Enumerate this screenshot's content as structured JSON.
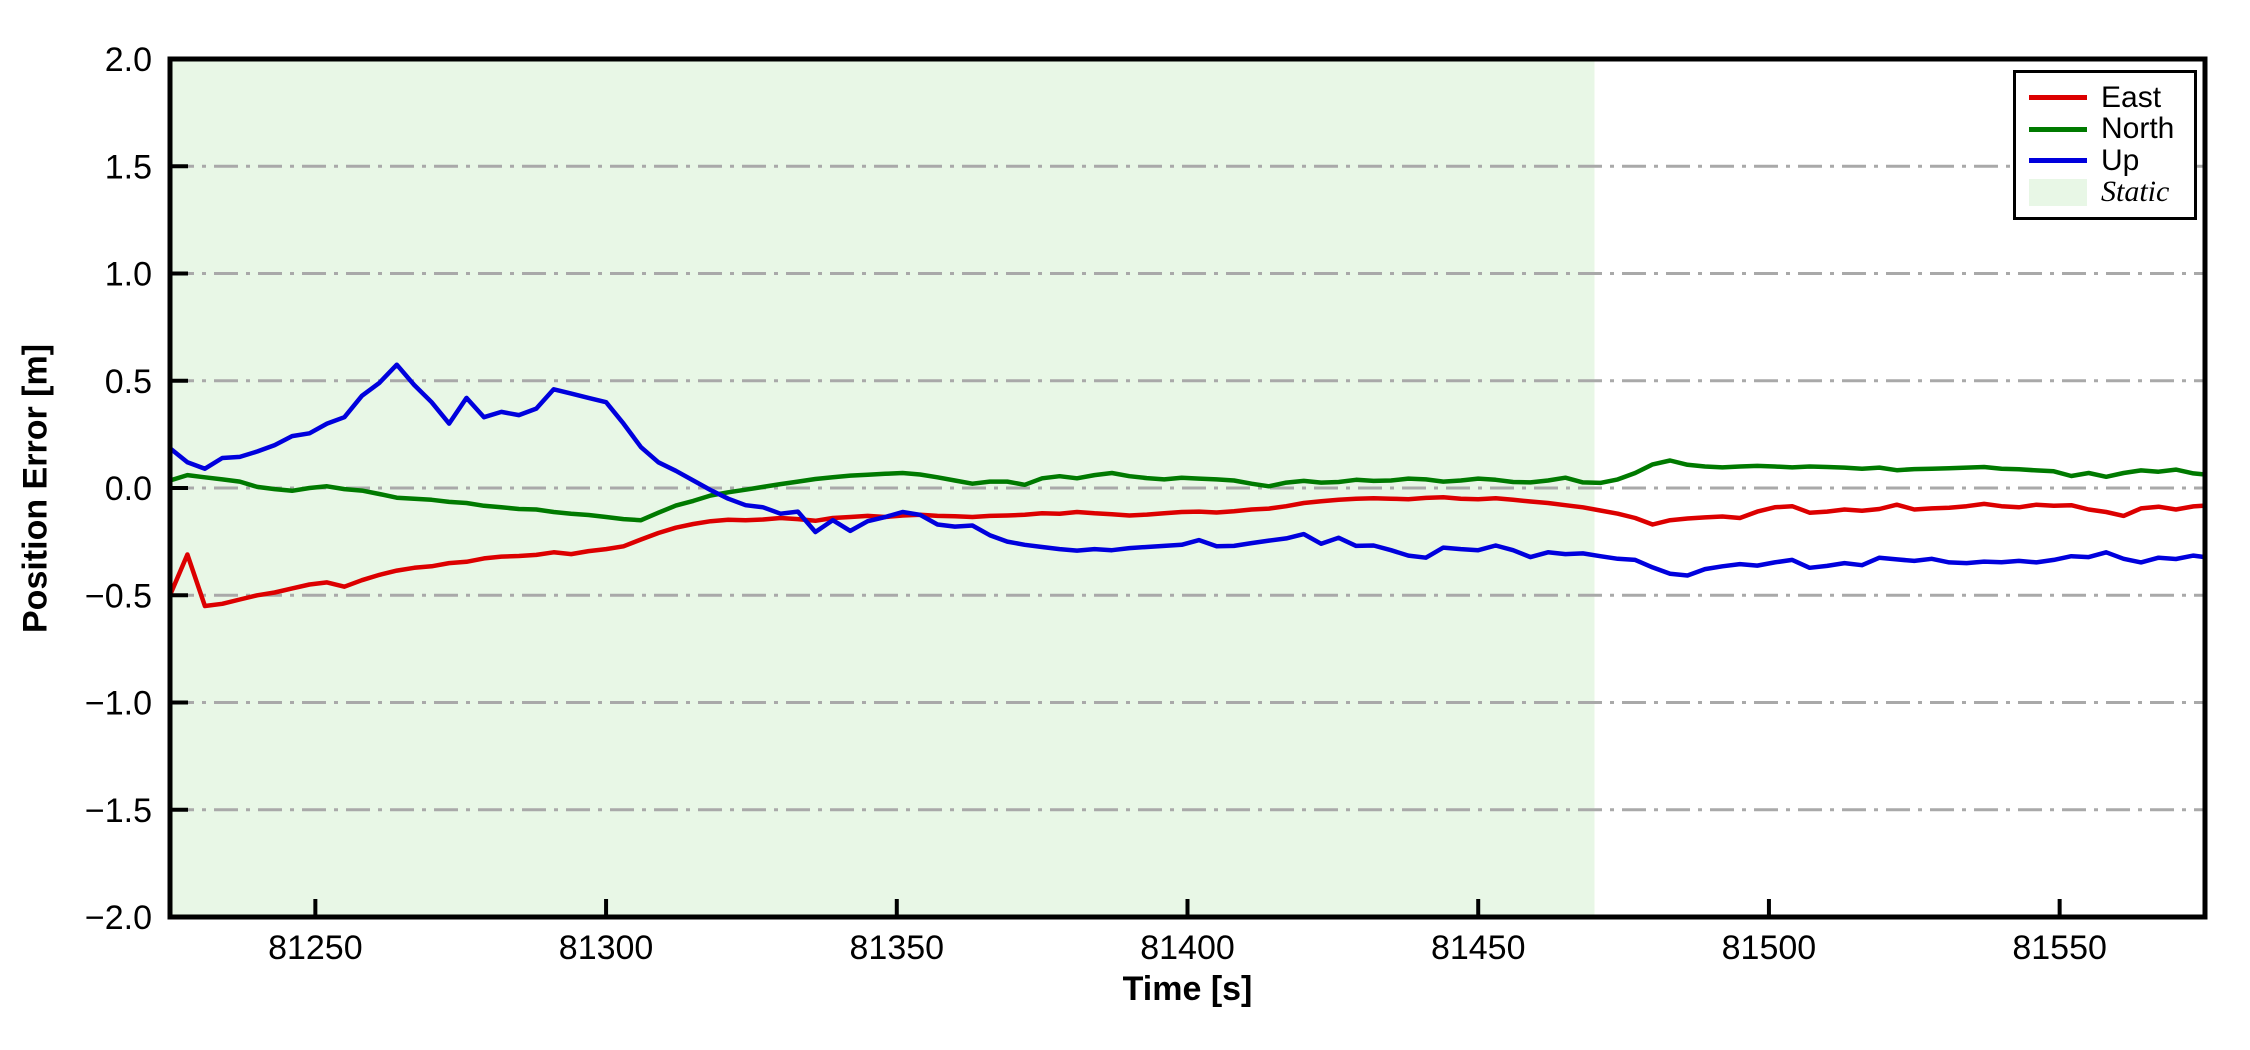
{
  "chart": {
    "type": "line",
    "xlabel": "Time [s]",
    "ylabel": "Position Error [m]",
    "xlim": [
      81225,
      81575
    ],
    "ylim": [
      -2.0,
      2.0
    ],
    "xticks": [
      81250,
      81300,
      81350,
      81400,
      81450,
      81500,
      81550
    ],
    "xtick_labels": [
      "81250",
      "81300",
      "81350",
      "81400",
      "81450",
      "81500",
      "81550"
    ],
    "yticks": [
      2.0,
      1.5,
      1.0,
      0.5,
      0.0,
      -0.5,
      -1.0,
      -1.5,
      -2.0
    ],
    "ytick_labels": [
      "2.0",
      "1.5",
      "1.0",
      "0.5",
      "0.0",
      "−0.5",
      "−1.0",
      "−1.5",
      "−2.0"
    ],
    "grid": {
      "values": [
        1.5,
        1.0,
        0.5,
        0.0,
        -0.5,
        -1.0,
        -1.5
      ],
      "style": "dash-dot",
      "color": "#a9a9a9"
    },
    "static_region": {
      "label": "Static",
      "start": 81225,
      "end": 81470,
      "fill": "#e8f7e6"
    },
    "legend": {
      "position": "top-right",
      "items": [
        "East",
        "North",
        "Up",
        "Static"
      ]
    },
    "chart_data": {
      "x": [
        81225,
        81228,
        81231,
        81234,
        81237,
        81240,
        81243,
        81246,
        81249,
        81252,
        81255,
        81258,
        81261,
        81264,
        81267,
        81270,
        81273,
        81276,
        81279,
        81282,
        81285,
        81288,
        81291,
        81294,
        81297,
        81300,
        81303,
        81306,
        81309,
        81312,
        81315,
        81318,
        81321,
        81324,
        81327,
        81330,
        81333,
        81336,
        81339,
        81342,
        81345,
        81348,
        81351,
        81354,
        81357,
        81360,
        81363,
        81366,
        81369,
        81372,
        81375,
        81378,
        81381,
        81384,
        81387,
        81390,
        81393,
        81396,
        81399,
        81402,
        81405,
        81408,
        81411,
        81414,
        81417,
        81420,
        81423,
        81426,
        81429,
        81432,
        81435,
        81438,
        81441,
        81444,
        81447,
        81450,
        81453,
        81456,
        81459,
        81462,
        81465,
        81468,
        81471,
        81474,
        81477,
        81480,
        81483,
        81486,
        81489,
        81492,
        81495,
        81498,
        81501,
        81504,
        81507,
        81510,
        81513,
        81516,
        81519,
        81522,
        81525,
        81528,
        81531,
        81534,
        81537,
        81540,
        81543,
        81546,
        81549,
        81552,
        81555,
        81558,
        81561,
        81564,
        81567,
        81570,
        81573,
        81575
      ],
      "series": [
        {
          "name": "East",
          "color": "#dc0000",
          "values": [
            -0.5,
            -0.31,
            -0.55,
            -0.54,
            -0.52,
            -0.5,
            -0.487,
            -0.468,
            -0.45,
            -0.44,
            -0.46,
            -0.43,
            -0.405,
            -0.385,
            -0.372,
            -0.365,
            -0.35,
            -0.344,
            -0.328,
            -0.32,
            -0.317,
            -0.312,
            -0.3,
            -0.308,
            -0.294,
            -0.285,
            -0.272,
            -0.24,
            -0.21,
            -0.185,
            -0.168,
            -0.155,
            -0.148,
            -0.15,
            -0.147,
            -0.14,
            -0.145,
            -0.153,
            -0.14,
            -0.135,
            -0.13,
            -0.135,
            -0.128,
            -0.125,
            -0.13,
            -0.132,
            -0.135,
            -0.13,
            -0.128,
            -0.125,
            -0.118,
            -0.12,
            -0.112,
            -0.118,
            -0.122,
            -0.128,
            -0.124,
            -0.118,
            -0.112,
            -0.11,
            -0.114,
            -0.108,
            -0.1,
            -0.096,
            -0.085,
            -0.07,
            -0.062,
            -0.055,
            -0.05,
            -0.048,
            -0.05,
            -0.052,
            -0.046,
            -0.043,
            -0.05,
            -0.052,
            -0.048,
            -0.055,
            -0.063,
            -0.07,
            -0.08,
            -0.09,
            -0.105,
            -0.12,
            -0.14,
            -0.17,
            -0.15,
            -0.142,
            -0.137,
            -0.133,
            -0.14,
            -0.11,
            -0.09,
            -0.085,
            -0.115,
            -0.11,
            -0.1,
            -0.106,
            -0.098,
            -0.078,
            -0.1,
            -0.095,
            -0.092,
            -0.085,
            -0.074,
            -0.085,
            -0.09,
            -0.078,
            -0.083,
            -0.08,
            -0.1,
            -0.112,
            -0.13,
            -0.095,
            -0.087,
            -0.1,
            -0.086,
            -0.082
          ]
        },
        {
          "name": "North",
          "color": "#007a00",
          "values": [
            0.035,
            0.06,
            0.05,
            0.04,
            0.03,
            0.005,
            -0.005,
            -0.013,
            0.0,
            0.008,
            -0.005,
            -0.012,
            -0.028,
            -0.045,
            -0.05,
            -0.055,
            -0.065,
            -0.07,
            -0.083,
            -0.09,
            -0.098,
            -0.1,
            -0.112,
            -0.12,
            -0.126,
            -0.135,
            -0.145,
            -0.15,
            -0.115,
            -0.082,
            -0.06,
            -0.035,
            -0.02,
            -0.008,
            0.005,
            0.018,
            0.03,
            0.042,
            0.05,
            0.058,
            0.062,
            0.066,
            0.07,
            0.063,
            0.05,
            0.035,
            0.02,
            0.03,
            0.03,
            0.015,
            0.045,
            0.055,
            0.045,
            0.06,
            0.07,
            0.055,
            0.046,
            0.04,
            0.048,
            0.044,
            0.04,
            0.035,
            0.02,
            0.008,
            0.025,
            0.033,
            0.025,
            0.028,
            0.038,
            0.033,
            0.035,
            0.044,
            0.04,
            0.03,
            0.035,
            0.044,
            0.038,
            0.028,
            0.026,
            0.035,
            0.048,
            0.026,
            0.024,
            0.04,
            0.07,
            0.11,
            0.128,
            0.108,
            0.1,
            0.096,
            0.1,
            0.103,
            0.1,
            0.096,
            0.1,
            0.098,
            0.095,
            0.09,
            0.095,
            0.083,
            0.088,
            0.09,
            0.092,
            0.095,
            0.098,
            0.09,
            0.087,
            0.082,
            0.078,
            0.056,
            0.07,
            0.052,
            0.07,
            0.082,
            0.076,
            0.086,
            0.068,
            0.063
          ]
        },
        {
          "name": "Up",
          "color": "#0000dd",
          "values": [
            0.185,
            0.12,
            0.09,
            0.14,
            0.145,
            0.17,
            0.2,
            0.242,
            0.255,
            0.3,
            0.33,
            0.43,
            0.49,
            0.575,
            0.48,
            0.4,
            0.3,
            0.42,
            0.33,
            0.355,
            0.34,
            0.37,
            0.46,
            0.44,
            0.42,
            0.4,
            0.3,
            0.19,
            0.12,
            0.08,
            0.035,
            -0.01,
            -0.05,
            -0.08,
            -0.09,
            -0.12,
            -0.11,
            -0.205,
            -0.15,
            -0.2,
            -0.155,
            -0.135,
            -0.112,
            -0.125,
            -0.17,
            -0.18,
            -0.175,
            -0.22,
            -0.25,
            -0.265,
            -0.275,
            -0.285,
            -0.292,
            -0.285,
            -0.29,
            -0.28,
            -0.275,
            -0.27,
            -0.265,
            -0.243,
            -0.272,
            -0.27,
            -0.257,
            -0.245,
            -0.235,
            -0.215,
            -0.26,
            -0.232,
            -0.27,
            -0.268,
            -0.29,
            -0.315,
            -0.325,
            -0.278,
            -0.285,
            -0.29,
            -0.268,
            -0.29,
            -0.322,
            -0.3,
            -0.308,
            -0.305,
            -0.318,
            -0.33,
            -0.335,
            -0.37,
            -0.4,
            -0.408,
            -0.378,
            -0.365,
            -0.355,
            -0.362,
            -0.347,
            -0.335,
            -0.372,
            -0.363,
            -0.35,
            -0.36,
            -0.325,
            -0.333,
            -0.34,
            -0.33,
            -0.347,
            -0.35,
            -0.343,
            -0.346,
            -0.34,
            -0.347,
            -0.335,
            -0.318,
            -0.322,
            -0.3,
            -0.33,
            -0.347,
            -0.325,
            -0.331,
            -0.315,
            -0.322
          ]
        }
      ]
    }
  }
}
